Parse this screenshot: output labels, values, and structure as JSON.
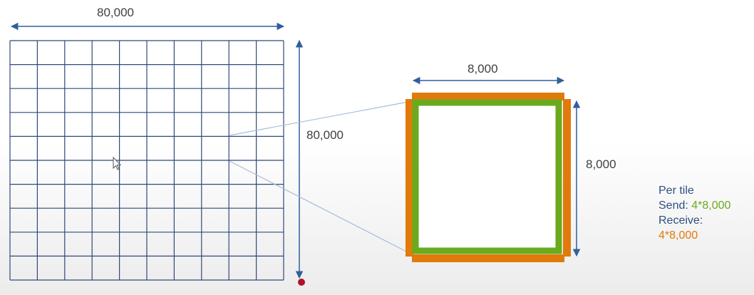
{
  "grid": {
    "width_label": "80,000",
    "height_label": "80,000",
    "cells_per_side": 10
  },
  "tile": {
    "width_label": "8,000",
    "height_label": "8,000"
  },
  "notes": {
    "heading": "Per tile",
    "send_label": "Send:",
    "send_value": "4*8,000",
    "receive_label": "Receive:",
    "receive_value": "4*8,000"
  },
  "colors": {
    "grid_line": "#2f4a7a",
    "dimension_arrow": "#2f5f9e",
    "send": "#6aaa1e",
    "receive": "#e07b0b",
    "connector": "#a8bdd6",
    "text": "#404040"
  }
}
